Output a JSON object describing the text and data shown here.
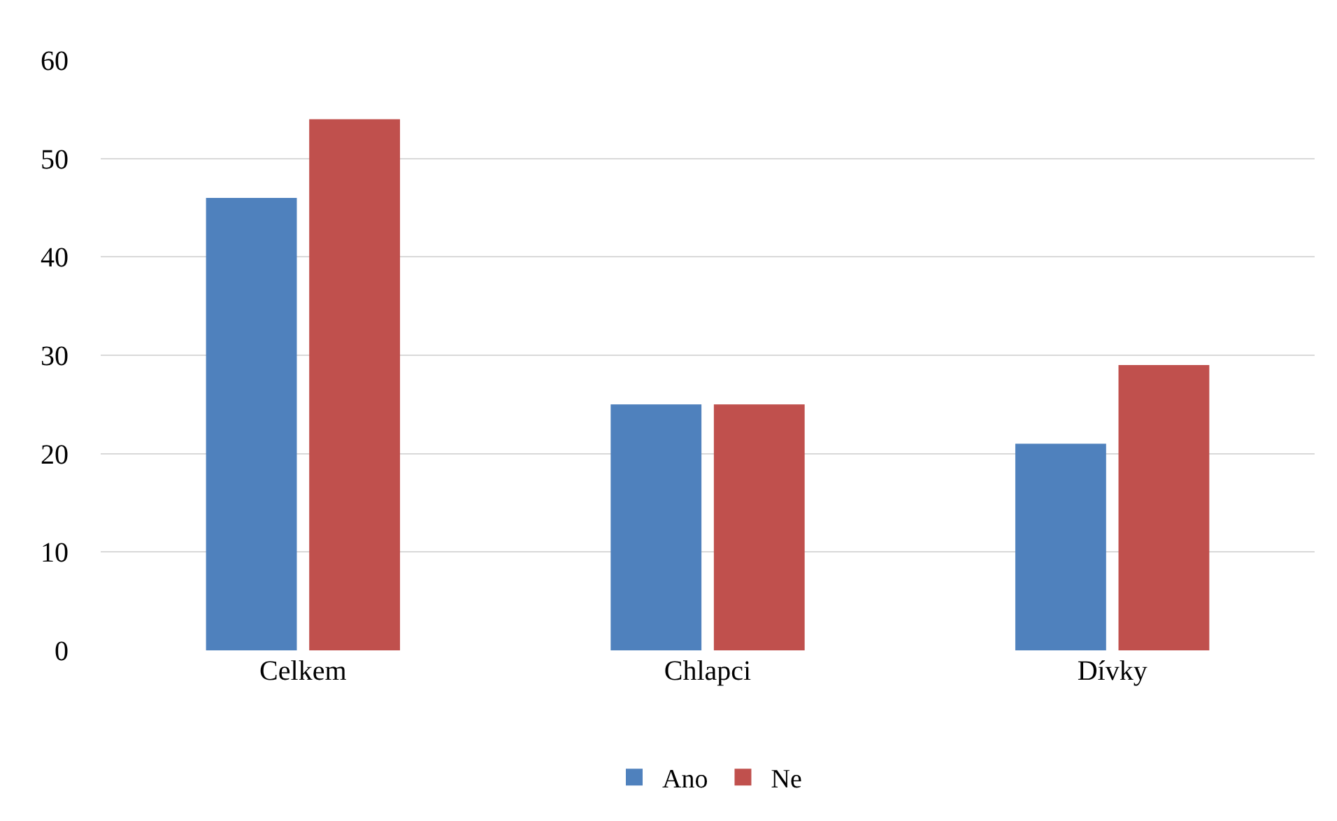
{
  "chart_data": {
    "type": "bar",
    "categories": [
      "Celkem",
      "Chlapci",
      "Dívky"
    ],
    "series": [
      {
        "name": "Ano",
        "color": "#4f81bd",
        "values": [
          46,
          25,
          21
        ]
      },
      {
        "name": "Ne",
        "color": "#c0504d",
        "values": [
          54,
          25,
          29
        ]
      }
    ],
    "ylim": [
      0,
      60
    ],
    "yticks": [
      0,
      10,
      20,
      30,
      40,
      50,
      60
    ],
    "grid": "y",
    "legend": "bottom"
  }
}
